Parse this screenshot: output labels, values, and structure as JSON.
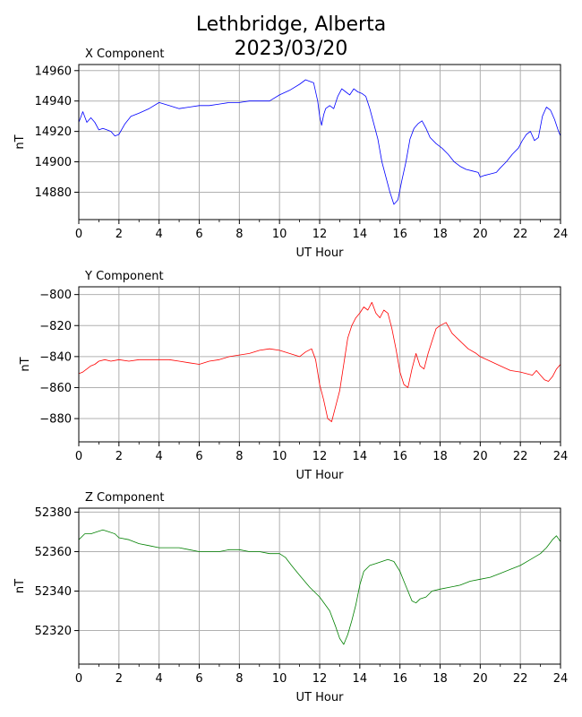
{
  "title_line1": "Lethbridge, Alberta",
  "title_line2": "2023/03/20",
  "chart_data": [
    {
      "type": "line",
      "title": "X Component",
      "xlabel": "UT Hour",
      "ylabel": "nT",
      "xlim": [
        0,
        24
      ],
      "ylim": [
        14862,
        14964
      ],
      "xticks": [
        0,
        2,
        4,
        6,
        8,
        10,
        12,
        14,
        16,
        18,
        20,
        22,
        24
      ],
      "yticks": [
        14880,
        14900,
        14920,
        14940,
        14960
      ],
      "grid": true,
      "color": "#0000ff",
      "series": [
        {
          "x": [
            0,
            0.2,
            0.4,
            0.6,
            0.8,
            1,
            1.2,
            1.4,
            1.6,
            1.8,
            2,
            2.3,
            2.6,
            3,
            3.5,
            4,
            4.5,
            5,
            5.5,
            6,
            6.5,
            7,
            7.5,
            8,
            8.5,
            9,
            9.5,
            10,
            10.5,
            11,
            11.3,
            11.5,
            11.7,
            11.9,
            12,
            12.1,
            12.2,
            12.3,
            12.5,
            12.7,
            12.9,
            13.1,
            13.3,
            13.5,
            13.7,
            13.9,
            14.1,
            14.3,
            14.5,
            14.7,
            14.9,
            15.1,
            15.3,
            15.5,
            15.7,
            15.9,
            16.1,
            16.3,
            16.5,
            16.7,
            16.9,
            17.1,
            17.3,
            17.5,
            17.8,
            18.1,
            18.4,
            18.7,
            19,
            19.3,
            19.6,
            19.9,
            20,
            20.2,
            20.5,
            20.8,
            21,
            21.3,
            21.6,
            21.9,
            22.1,
            22.3,
            22.5,
            22.7,
            22.9,
            23.1,
            23.3,
            23.5,
            23.7,
            23.9,
            24
          ],
          "y": [
            14926,
            14933,
            14926,
            14929,
            14926,
            14921,
            14922,
            14921,
            14920,
            14917,
            14918,
            14925,
            14930,
            14932,
            14935,
            14939,
            14937,
            14935,
            14936,
            14937,
            14937,
            14938,
            14939,
            14939,
            14940,
            14940,
            14940,
            14944,
            14947,
            14951,
            14954,
            14953,
            14952,
            14940,
            14930,
            14924,
            14931,
            14935,
            14937,
            14935,
            14943,
            14948,
            14946,
            14944,
            14948,
            14946,
            14945,
            14943,
            14935,
            14925,
            14915,
            14900,
            14890,
            14880,
            14872,
            14875,
            14888,
            14900,
            14915,
            14922,
            14925,
            14927,
            14922,
            14916,
            14912,
            14909,
            14905,
            14900,
            14897,
            14895,
            14894,
            14893,
            14890,
            14891,
            14892,
            14893,
            14896,
            14900,
            14905,
            14909,
            14914,
            14918,
            14920,
            14914,
            14916,
            14930,
            14936,
            14934,
            14928,
            14920,
            14917
          ]
        }
      ]
    },
    {
      "type": "line",
      "title": "Y Component",
      "xlabel": "UT Hour",
      "ylabel": "nT",
      "xlim": [
        0,
        24
      ],
      "ylim": [
        -895,
        -795
      ],
      "xticks": [
        0,
        2,
        4,
        6,
        8,
        10,
        12,
        14,
        16,
        18,
        20,
        22,
        24
      ],
      "yticks": [
        -880,
        -860,
        -840,
        -820,
        -800
      ],
      "grid": true,
      "color": "#ff0000",
      "series": [
        {
          "x": [
            0,
            0.2,
            0.4,
            0.6,
            0.8,
            1,
            1.3,
            1.6,
            2,
            2.5,
            3,
            3.5,
            4,
            4.5,
            5,
            5.5,
            6,
            6.5,
            7,
            7.5,
            8,
            8.5,
            9,
            9.5,
            10,
            10.5,
            11,
            11.3,
            11.6,
            11.8,
            12,
            12.2,
            12.4,
            12.6,
            12.8,
            13,
            13.2,
            13.4,
            13.6,
            13.8,
            14,
            14.2,
            14.4,
            14.6,
            14.8,
            15,
            15.2,
            15.4,
            15.6,
            15.8,
            16,
            16.2,
            16.4,
            16.6,
            16.8,
            17,
            17.2,
            17.4,
            17.6,
            17.8,
            18,
            18.3,
            18.6,
            19,
            19.4,
            19.8,
            20,
            20.5,
            21,
            21.5,
            22,
            22.3,
            22.6,
            22.8,
            23,
            23.2,
            23.4,
            23.6,
            23.8,
            24
          ],
          "y": [
            -851,
            -850,
            -848,
            -846,
            -845,
            -843,
            -842,
            -843,
            -842,
            -843,
            -842,
            -842,
            -842,
            -842,
            -843,
            -844,
            -845,
            -843,
            -842,
            -840,
            -839,
            -838,
            -836,
            -835,
            -836,
            -838,
            -840,
            -837,
            -835,
            -842,
            -858,
            -868,
            -880,
            -882,
            -872,
            -862,
            -845,
            -828,
            -820,
            -815,
            -812,
            -808,
            -810,
            -805,
            -812,
            -815,
            -810,
            -812,
            -822,
            -835,
            -850,
            -858,
            -860,
            -848,
            -838,
            -846,
            -848,
            -838,
            -830,
            -822,
            -820,
            -818,
            -825,
            -830,
            -835,
            -838,
            -840,
            -843,
            -846,
            -849,
            -850,
            -851,
            -852,
            -849,
            -852,
            -855,
            -856,
            -853,
            -848,
            -845
          ]
        }
      ]
    },
    {
      "type": "line",
      "title": "Z Component",
      "xlabel": "UT Hour",
      "ylabel": "nT",
      "xlim": [
        0,
        24
      ],
      "ylim": [
        52303,
        52382
      ],
      "xticks": [
        0,
        2,
        4,
        6,
        8,
        10,
        12,
        14,
        16,
        18,
        20,
        22,
        24
      ],
      "yticks": [
        52320,
        52340,
        52360,
        52380
      ],
      "grid": true,
      "color": "#008000",
      "series": [
        {
          "x": [
            0,
            0.3,
            0.6,
            0.9,
            1.2,
            1.5,
            1.8,
            2,
            2.5,
            3,
            3.5,
            4,
            4.5,
            5,
            5.5,
            6,
            6.5,
            7,
            7.5,
            8,
            8.5,
            9,
            9.5,
            10,
            10.3,
            10.6,
            11,
            11.5,
            12,
            12.5,
            12.8,
            13,
            13.2,
            13.4,
            13.6,
            13.8,
            14,
            14.2,
            14.5,
            14.8,
            15.1,
            15.4,
            15.7,
            16,
            16.2,
            16.4,
            16.6,
            16.8,
            17,
            17.3,
            17.6,
            18,
            18.5,
            19,
            19.5,
            20,
            20.5,
            21,
            21.5,
            22,
            22.5,
            23,
            23.3,
            23.6,
            23.8,
            24
          ],
          "y": [
            52366,
            52369,
            52369,
            52370,
            52371,
            52370,
            52369,
            52367,
            52366,
            52364,
            52363,
            52362,
            52362,
            52362,
            52361,
            52360,
            52360,
            52360,
            52361,
            52361,
            52360,
            52360,
            52359,
            52359,
            52357,
            52353,
            52348,
            52342,
            52337,
            52330,
            52322,
            52316,
            52313,
            52318,
            52325,
            52333,
            52343,
            52350,
            52353,
            52354,
            52355,
            52356,
            52355,
            52350,
            52345,
            52340,
            52335,
            52334,
            52336,
            52337,
            52340,
            52341,
            52342,
            52343,
            52345,
            52346,
            52347,
            52349,
            52351,
            52353,
            52356,
            52359,
            52362,
            52366,
            52368,
            52365
          ]
        }
      ]
    }
  ]
}
